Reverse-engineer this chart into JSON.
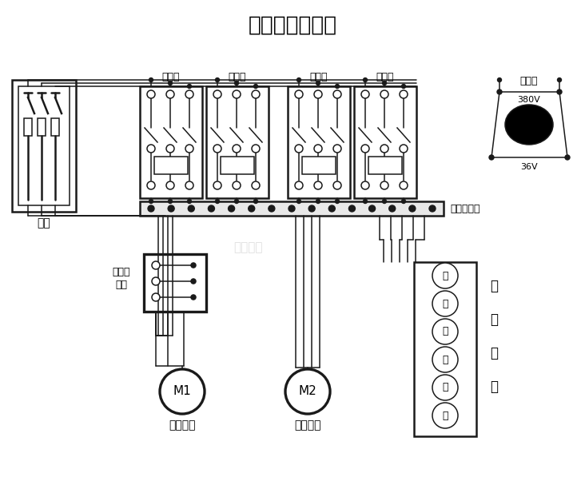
{
  "title": "电动葫芦接线图",
  "bg": "#ffffff",
  "lc": "#1a1a1a",
  "title_fs": 19,
  "label_闸刀": "闸刀",
  "label_断火限": "断火限",
  "label_位器": "位器",
  "label_接触器": "接触器",
  "label_变压器": "变压器",
  "label_380V": "380V",
  "label_36V": "36V",
  "label_接线端子排": "接线端子排",
  "label_M1": "M1",
  "label_M2": "M2",
  "label_升降电机": "升降电机",
  "label_行走电机": "行走电机",
  "label_操作手柄_1": "操",
  "label_操作手柄_2": "作",
  "label_操作手柄_3": "手",
  "label_操作手柄_4": "柄",
  "label_buttons": [
    "绿",
    "红",
    "上",
    "下",
    "左",
    "右"
  ],
  "watermark": "北京凌鹰"
}
